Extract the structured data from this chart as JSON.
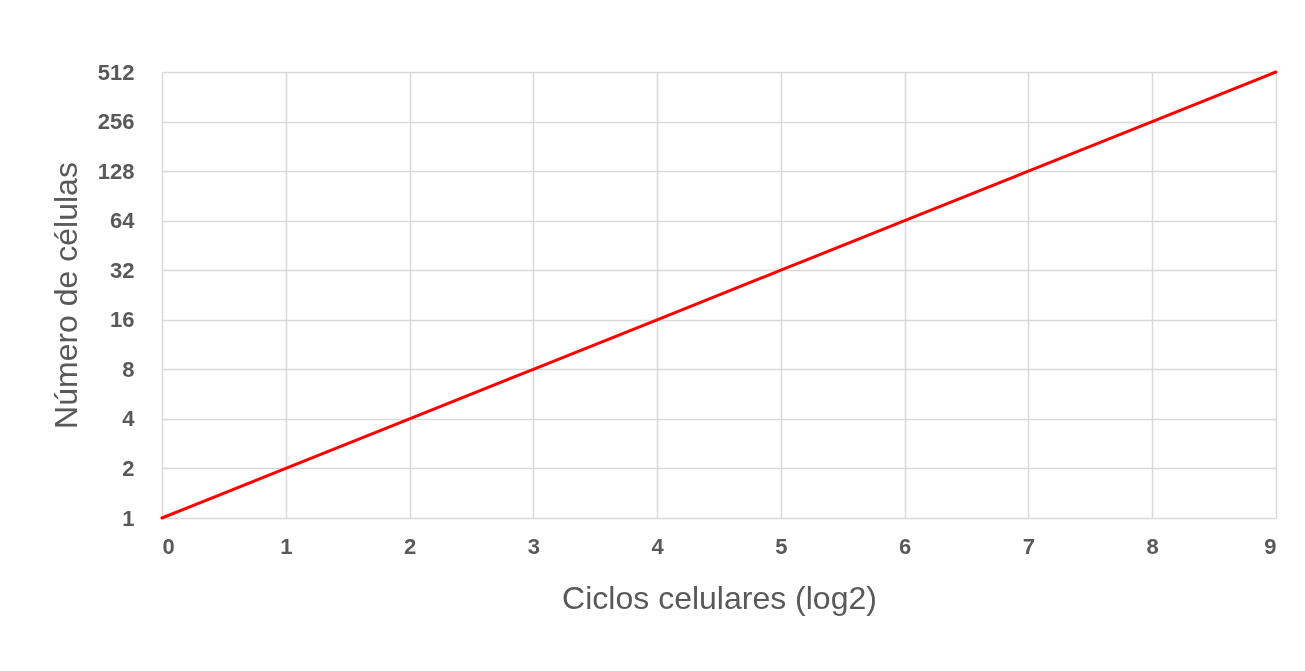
{
  "chart_data": {
    "type": "line",
    "xlabel": "Ciclos celulares (log2)",
    "ylabel": "Número de células",
    "x": [
      0,
      1,
      2,
      3,
      4,
      5,
      6,
      7,
      8,
      9
    ],
    "series": [
      {
        "color": "#ff0000",
        "values": [
          1,
          2,
          4,
          8,
          16,
          32,
          64,
          128,
          256,
          512
        ]
      }
    ],
    "xlim": [
      0,
      9
    ],
    "xticks": [
      0,
      1,
      2,
      3,
      4,
      5,
      6,
      7,
      8,
      9
    ],
    "ylim": [
      1,
      512
    ],
    "yticks": [
      1,
      2,
      4,
      8,
      16,
      32,
      64,
      128,
      256,
      512
    ],
    "log": "y",
    "grid": true,
    "line_style": "solid"
  }
}
